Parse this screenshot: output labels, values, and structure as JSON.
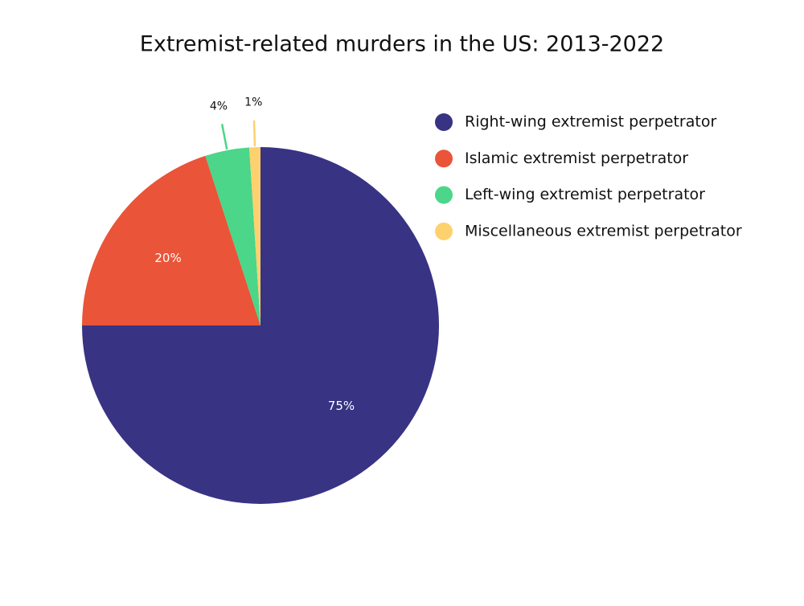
{
  "chart_data": {
    "type": "pie",
    "title": "Extremist-related murders in the US: 2013-2022",
    "categories": [
      "Right-wing extremist perpetrator",
      "Islamic extremist perpetrator",
      "Left-wing extremist perpetrator",
      "Miscellaneous extremist perpetrator"
    ],
    "values": [
      75,
      20,
      4,
      1
    ],
    "value_labels": [
      "75%",
      "20%",
      "4%",
      "1%"
    ],
    "colors": [
      "#383383",
      "#ea5438",
      "#4bd68a",
      "#fdd16e"
    ],
    "legend": "right"
  }
}
